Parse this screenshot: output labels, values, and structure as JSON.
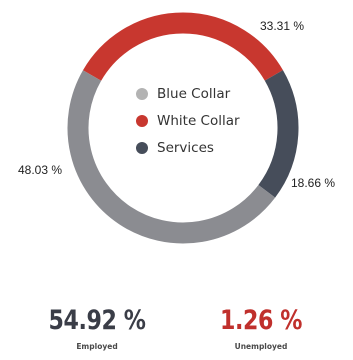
{
  "chart_data": {
    "type": "pie",
    "donut": true,
    "categories": [
      "White Collar",
      "Services",
      "Blue Collar"
    ],
    "values": [
      33.31,
      18.66,
      48.03
    ],
    "value_labels": [
      "33.31 %",
      "18.66 %",
      "48.03 %"
    ],
    "colors": [
      "#c8372f",
      "#464d5a",
      "#8b8c91"
    ],
    "legend": {
      "placement": "center",
      "items": [
        {
          "label": "Blue Collar",
          "color": "#b3b3b3"
        },
        {
          "label": "White Collar",
          "color": "#c8372f"
        },
        {
          "label": "Services",
          "color": "#464d5a"
        }
      ]
    }
  },
  "stats": {
    "employed": {
      "value": "54.92 %",
      "label": "Employed",
      "color": "#3a3d47"
    },
    "unemployed": {
      "value": "1.26 %",
      "label": "Unemployed",
      "color": "#c0302c"
    }
  }
}
